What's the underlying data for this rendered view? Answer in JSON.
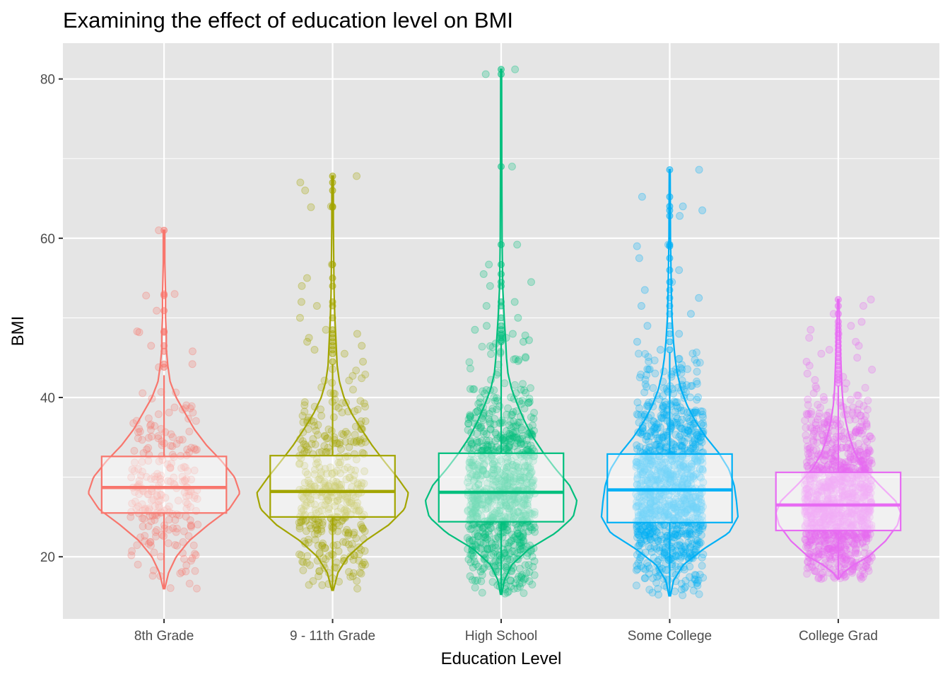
{
  "chart_data": {
    "type": "violin",
    "title": "Examining the effect of education level on BMI",
    "xlabel": "Education Level",
    "ylabel": "BMI",
    "ylim": [
      12.2,
      84.5
    ],
    "yticks": [
      20,
      40,
      60,
      80
    ],
    "grid": true,
    "legend": "none",
    "background": "#e5e5e5",
    "grid_color": "#ffffff",
    "categories": [
      "8th Grade",
      "9 - 11th Grade",
      "High School",
      "Some College",
      "College Grad"
    ],
    "series": [
      {
        "category": "8th Grade",
        "color": "#F8766D",
        "min": 16.0,
        "max": 61.0,
        "q1": 25.5,
        "median": 28.7,
        "q3": 32.6,
        "whisker_low": 16.0,
        "whisker_high": 42.8,
        "outliers": [
          43.8,
          44.2,
          45.8,
          46.5,
          48.2,
          48.3,
          50.9,
          52.8,
          53.0,
          61.0
        ],
        "density": [
          [
            16.0,
            0.01
          ],
          [
            18,
            0.06
          ],
          [
            20,
            0.16
          ],
          [
            22,
            0.33
          ],
          [
            24,
            0.58
          ],
          [
            26,
            0.86
          ],
          [
            28,
            1.0
          ],
          [
            30,
            0.93
          ],
          [
            32,
            0.76
          ],
          [
            34,
            0.56
          ],
          [
            36,
            0.4
          ],
          [
            38,
            0.28
          ],
          [
            40,
            0.16
          ],
          [
            42,
            0.08
          ],
          [
            44,
            0.05
          ],
          [
            46,
            0.03
          ],
          [
            48,
            0.03
          ],
          [
            50,
            0.02
          ],
          [
            53,
            0.02
          ],
          [
            57,
            0.01
          ],
          [
            61.0,
            0.01
          ]
        ],
        "n_points": 240,
        "violin_width": 0.9
      },
      {
        "category": "9 - 11th Grade",
        "color": "#A3A500",
        "min": 15.8,
        "max": 67.8,
        "q1": 25.0,
        "median": 28.2,
        "q3": 32.7,
        "whisker_low": 15.8,
        "whisker_high": 44.2,
        "outliers": [
          44.5,
          45.5,
          46.0,
          46.5,
          47.0,
          47.5,
          48.0,
          48.5,
          50.0,
          51.5,
          52.0,
          54.0,
          55.0,
          56.7,
          63.9,
          64.0,
          66.0,
          67.0,
          67.8
        ],
        "density": [
          [
            15.8,
            0.01
          ],
          [
            18,
            0.07
          ],
          [
            20,
            0.2
          ],
          [
            22,
            0.43
          ],
          [
            24,
            0.74
          ],
          [
            26,
            0.95
          ],
          [
            28,
            1.0
          ],
          [
            30,
            0.85
          ],
          [
            32,
            0.68
          ],
          [
            34,
            0.52
          ],
          [
            36,
            0.38
          ],
          [
            38,
            0.25
          ],
          [
            40,
            0.15
          ],
          [
            42,
            0.09
          ],
          [
            44,
            0.06
          ],
          [
            46,
            0.05
          ],
          [
            48,
            0.04
          ],
          [
            50,
            0.03
          ],
          [
            53,
            0.02
          ],
          [
            57,
            0.015
          ],
          [
            62,
            0.01
          ],
          [
            67.8,
            0.01
          ]
        ],
        "n_points": 420,
        "violin_width": 0.9
      },
      {
        "category": "High School",
        "color": "#00BF7D",
        "min": 15.3,
        "max": 81.2,
        "q1": 24.4,
        "median": 28.1,
        "q3": 33.0,
        "whisker_low": 15.3,
        "whisker_high": 46.8,
        "outliers": [
          47.0,
          47.2,
          47.5,
          47.8,
          48.0,
          48.5,
          49.0,
          50.0,
          51.5,
          52.0,
          54.0,
          54.5,
          55.5,
          56.7,
          59.2,
          69.0,
          80.6,
          81.2
        ],
        "density": [
          [
            15.3,
            0.01
          ],
          [
            17,
            0.04
          ],
          [
            19,
            0.14
          ],
          [
            21,
            0.37
          ],
          [
            23,
            0.72
          ],
          [
            25,
            0.95
          ],
          [
            27,
            1.0
          ],
          [
            29,
            0.9
          ],
          [
            31,
            0.72
          ],
          [
            33,
            0.56
          ],
          [
            35,
            0.42
          ],
          [
            37,
            0.31
          ],
          [
            39,
            0.22
          ],
          [
            41,
            0.14
          ],
          [
            43,
            0.09
          ],
          [
            45,
            0.07
          ],
          [
            47,
            0.06
          ],
          [
            50,
            0.04
          ],
          [
            54,
            0.02
          ],
          [
            60,
            0.012
          ],
          [
            70,
            0.008
          ],
          [
            81.2,
            0.006
          ]
        ],
        "n_points": 900,
        "violin_width": 0.9
      },
      {
        "category": "Some College",
        "color": "#00B0F6",
        "min": 15.1,
        "max": 68.6,
        "q1": 24.3,
        "median": 28.4,
        "q3": 32.9,
        "whisker_low": 15.1,
        "whisker_high": 45.7,
        "outliers": [
          46.0,
          47.0,
          48.0,
          49.0,
          50.5,
          51.5,
          52.5,
          53.5,
          54.5,
          56.0,
          57.5,
          59.0,
          59.2,
          62.8,
          63.5,
          64.0,
          65.2,
          68.6
        ],
        "density": [
          [
            15.1,
            0.01
          ],
          [
            17,
            0.05
          ],
          [
            19,
            0.18
          ],
          [
            21,
            0.45
          ],
          [
            23,
            0.78
          ],
          [
            25,
            0.9
          ],
          [
            27,
            0.88
          ],
          [
            29,
            0.85
          ],
          [
            31,
            0.78
          ],
          [
            33,
            0.65
          ],
          [
            35,
            0.48
          ],
          [
            37,
            0.34
          ],
          [
            39,
            0.23
          ],
          [
            41,
            0.15
          ],
          [
            43,
            0.1
          ],
          [
            45,
            0.07
          ],
          [
            47,
            0.05
          ],
          [
            50,
            0.03
          ],
          [
            54,
            0.02
          ],
          [
            60,
            0.01
          ],
          [
            68.6,
            0.006
          ]
        ],
        "n_points": 1100,
        "violin_width": 0.9
      },
      {
        "category": "College Grad",
        "color": "#E76BF3",
        "min": 17.2,
        "max": 52.3,
        "q1": 23.3,
        "median": 26.5,
        "q3": 30.6,
        "whisker_low": 17.2,
        "whisker_high": 41.5,
        "outliers": [
          41.8,
          42.2,
          42.6,
          43.0,
          43.5,
          44.0,
          44.5,
          45.0,
          45.5,
          46.0,
          46.5,
          47.0,
          47.5,
          48.0,
          48.5,
          49.0,
          49.5,
          50.5,
          51.5,
          52.3
        ],
        "density": [
          [
            17.2,
            0.01
          ],
          [
            18,
            0.08
          ],
          [
            19,
            0.25
          ],
          [
            20,
            0.48
          ],
          [
            22,
            0.76
          ],
          [
            24,
            0.95
          ],
          [
            25.5,
            1.0
          ],
          [
            27,
            0.92
          ],
          [
            29,
            0.66
          ],
          [
            31,
            0.42
          ],
          [
            33,
            0.27
          ],
          [
            35,
            0.18
          ],
          [
            37,
            0.12
          ],
          [
            39,
            0.08
          ],
          [
            41,
            0.06
          ],
          [
            43,
            0.05
          ],
          [
            45,
            0.04
          ],
          [
            47,
            0.03
          ],
          [
            49,
            0.02
          ],
          [
            52.3,
            0.01
          ]
        ],
        "n_points": 1100,
        "violin_width": 0.74
      }
    ]
  }
}
